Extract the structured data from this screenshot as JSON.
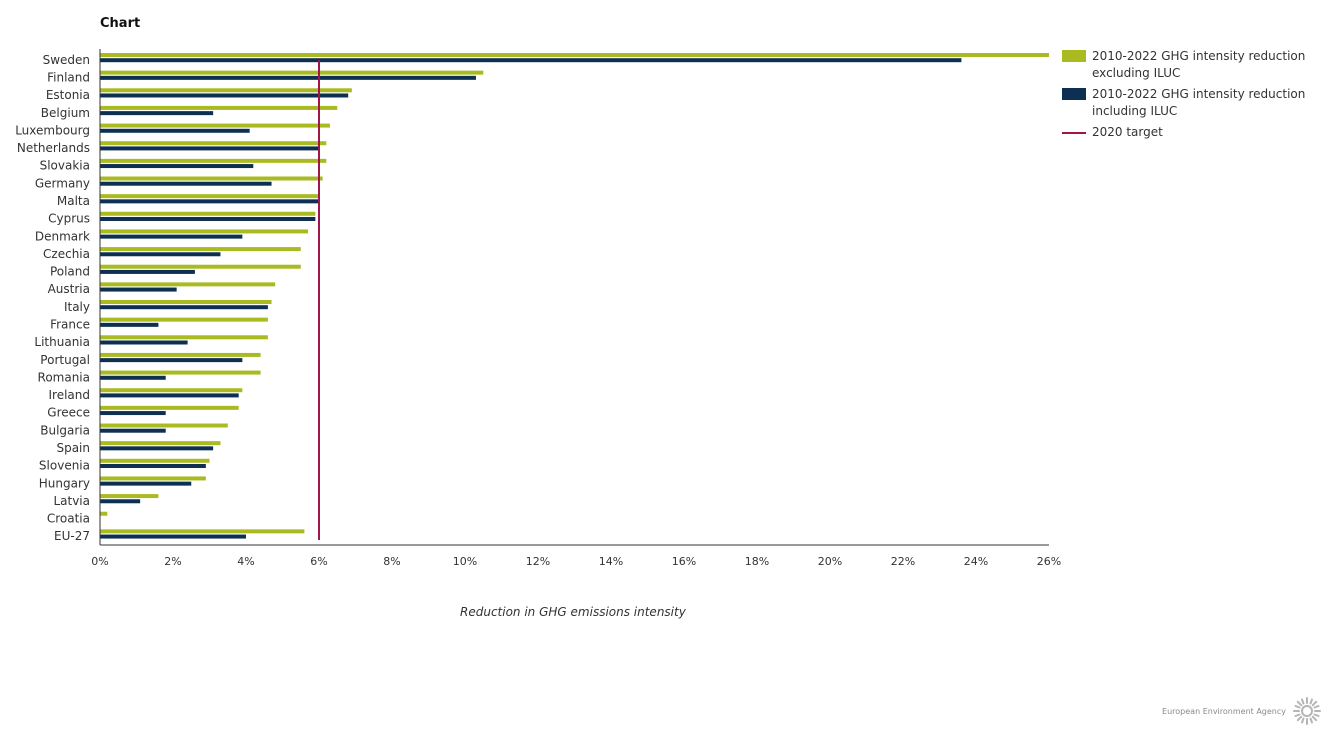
{
  "page": {
    "title": "Chart",
    "footer_org": "European Environment Agency",
    "logo_icon": "eea-sun-logo-icon"
  },
  "colors": {
    "excluding": "#aabb22",
    "including": "#0d2f52",
    "target": "#a0164a",
    "axis": "#333333"
  },
  "chart_data": {
    "type": "bar",
    "orientation": "horizontal",
    "title": "",
    "xlabel": "Reduction in GHG emissions intensity",
    "ylabel": "",
    "xlim": [
      0,
      26
    ],
    "x_ticks": [
      0,
      2,
      4,
      6,
      8,
      10,
      12,
      14,
      16,
      18,
      20,
      22,
      24,
      26
    ],
    "x_tick_labels": [
      "0%",
      "2%",
      "4%",
      "6%",
      "8%",
      "10%",
      "12%",
      "14%",
      "16%",
      "18%",
      "20%",
      "22%",
      "24%",
      "26%"
    ],
    "grid": false,
    "legend_position": "top-right",
    "categories": [
      "Sweden",
      "Finland",
      "Estonia",
      "Belgium",
      "Luxembourg",
      "Netherlands",
      "Slovakia",
      "Germany",
      "Malta",
      "Cyprus",
      "Denmark",
      "Czechia",
      "Poland",
      "Austria",
      "Italy",
      "France",
      "Lithuania",
      "Portugal",
      "Romania",
      "Ireland",
      "Greece",
      "Bulgaria",
      "Spain",
      "Slovenia",
      "Hungary",
      "Latvia",
      "Croatia",
      "EU-27"
    ],
    "series": [
      {
        "name": "2010-2022 GHG intensity reduction excluding ILUC",
        "values": [
          26.0,
          10.5,
          6.9,
          6.5,
          6.3,
          6.2,
          6.2,
          6.1,
          6.0,
          5.9,
          5.7,
          5.5,
          5.5,
          4.8,
          4.7,
          4.6,
          4.6,
          4.4,
          4.4,
          3.9,
          3.8,
          3.5,
          3.3,
          3.0,
          2.9,
          1.6,
          0.2,
          5.6
        ]
      },
      {
        "name": "2010-2022 GHG intensity reduction including ILUC",
        "values": [
          23.6,
          10.3,
          6.8,
          3.1,
          4.1,
          6.0,
          4.2,
          4.7,
          6.0,
          5.9,
          3.9,
          3.3,
          2.6,
          2.1,
          4.6,
          1.6,
          2.4,
          3.9,
          1.8,
          3.8,
          1.8,
          1.8,
          3.1,
          2.9,
          2.5,
          1.1,
          0.0,
          4.0
        ]
      }
    ],
    "target": {
      "name": "2020 target",
      "value": 6
    }
  },
  "legend": {
    "items": [
      {
        "label_line1": "2010-2022 GHG intensity reduction",
        "label_line2": "excluding ILUC"
      },
      {
        "label_line1": "2010-2022 GHG intensity reduction",
        "label_line2": "including ILUC"
      },
      {
        "label_line1": "2020 target"
      }
    ]
  }
}
